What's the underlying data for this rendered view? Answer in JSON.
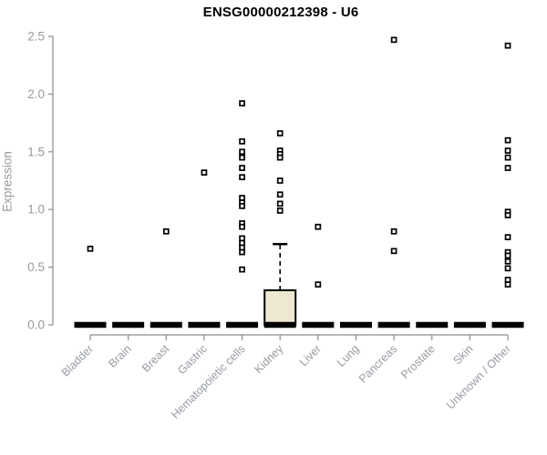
{
  "title": "ENSG00000212398 - U6",
  "ylabel": "Expression",
  "colors": {
    "axis": "#8c8c8c",
    "text": "#969ba1",
    "title": "#000000",
    "box_fill": "#ede8cf",
    "box_stroke": "#000000",
    "point_fill": "#ffffff",
    "point_stroke": "#000000",
    "background": "#ffffff"
  },
  "chart_data": {
    "type": "boxplot",
    "title": "ENSG00000212398 - U6",
    "xlabel": "",
    "ylabel": "Expression",
    "ylim": [
      0.0,
      2.5
    ],
    "yticks": [
      0.0,
      0.5,
      1.0,
      1.5,
      2.0,
      2.5
    ],
    "ytick_labels": [
      "0.0",
      "0.5",
      "1.0",
      "1.5",
      "2.0",
      "2.5"
    ],
    "grid": false,
    "legend": "none",
    "categories": [
      "Bladder",
      "Brain",
      "Breast",
      "Gastric",
      "Hematopoietic cells",
      "Kidney",
      "Liver",
      "Lung",
      "Pancreas",
      "Prostate",
      "Skin",
      "Unknown / Other"
    ],
    "series": [
      {
        "name": "Bladder",
        "box": {
          "whisker_low": 0,
          "q1": 0,
          "median": 0,
          "q3": 0,
          "whisker_high": 0
        },
        "outliers": [
          0.66
        ]
      },
      {
        "name": "Brain",
        "box": {
          "whisker_low": 0,
          "q1": 0,
          "median": 0,
          "q3": 0,
          "whisker_high": 0
        },
        "outliers": []
      },
      {
        "name": "Breast",
        "box": {
          "whisker_low": 0,
          "q1": 0,
          "median": 0,
          "q3": 0,
          "whisker_high": 0
        },
        "outliers": [
          0.81
        ]
      },
      {
        "name": "Gastric",
        "box": {
          "whisker_low": 0,
          "q1": 0,
          "median": 0,
          "q3": 0,
          "whisker_high": 0
        },
        "outliers": [
          1.32
        ]
      },
      {
        "name": "Hematopoietic cells",
        "box": {
          "whisker_low": 0,
          "q1": 0,
          "median": 0,
          "q3": 0,
          "whisker_high": 0
        },
        "outliers": [
          1.92,
          1.59,
          1.5,
          1.45,
          1.36,
          1.28,
          1.1,
          1.06,
          1.03,
          0.88,
          0.85,
          0.75,
          0.71,
          0.67,
          0.63,
          0.48
        ]
      },
      {
        "name": "Kidney",
        "box": {
          "whisker_low": 0,
          "q1": 0,
          "median": 0,
          "q3": 0.3,
          "whisker_high": 0.7
        },
        "outliers": [
          1.66,
          1.51,
          1.48,
          1.45,
          1.25,
          1.13,
          1.05,
          0.99
        ]
      },
      {
        "name": "Liver",
        "box": {
          "whisker_low": 0,
          "q1": 0,
          "median": 0,
          "q3": 0,
          "whisker_high": 0
        },
        "outliers": [
          0.85,
          0.35
        ]
      },
      {
        "name": "Lung",
        "box": {
          "whisker_low": 0,
          "q1": 0,
          "median": 0,
          "q3": 0,
          "whisker_high": 0
        },
        "outliers": []
      },
      {
        "name": "Pancreas",
        "box": {
          "whisker_low": 0,
          "q1": 0,
          "median": 0,
          "q3": 0,
          "whisker_high": 0
        },
        "outliers": [
          2.47,
          0.81,
          0.64
        ]
      },
      {
        "name": "Prostate",
        "box": {
          "whisker_low": 0,
          "q1": 0,
          "median": 0,
          "q3": 0,
          "whisker_high": 0
        },
        "outliers": []
      },
      {
        "name": "Skin",
        "box": {
          "whisker_low": 0,
          "q1": 0,
          "median": 0,
          "q3": 0,
          "whisker_high": 0
        },
        "outliers": []
      },
      {
        "name": "Unknown / Other",
        "box": {
          "whisker_low": 0,
          "q1": 0,
          "median": 0,
          "q3": 0,
          "whisker_high": 0
        },
        "outliers": [
          2.42,
          1.6,
          1.51,
          1.45,
          1.36,
          0.98,
          0.95,
          0.76,
          0.63,
          0.6,
          0.55,
          0.49,
          0.39,
          0.35
        ]
      }
    ]
  }
}
